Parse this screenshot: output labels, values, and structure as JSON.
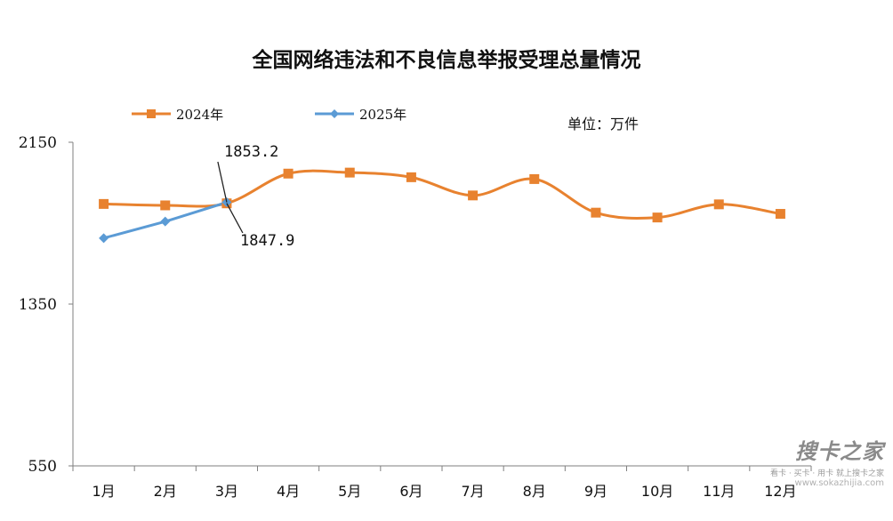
{
  "chart_data": {
    "type": "line",
    "title": "全国网络违法和不良信息举报受理总量情况",
    "unit_note": "单位：万件",
    "categories": [
      "1月",
      "2月",
      "3月",
      "4月",
      "5月",
      "6月",
      "7月",
      "8月",
      "9月",
      "10月",
      "11月",
      "12月"
    ],
    "ylim": [
      550,
      2150
    ],
    "yticks": [
      550,
      1350,
      2150
    ],
    "legend_position": "top-left",
    "series": [
      {
        "name": "2024年",
        "color": "#E8822F",
        "marker": "square",
        "smooth": true,
        "values": [
          1845,
          1838,
          1847.9,
          1995,
          2000,
          1977,
          1887,
          1968,
          1802,
          1778,
          1843,
          1796
        ]
      },
      {
        "name": "2025年",
        "color": "#5B9BD5",
        "marker": "diamond",
        "smooth": false,
        "values": [
          1676,
          1758,
          1853.2,
          null,
          null,
          null,
          null,
          null,
          null,
          null,
          null,
          null
        ]
      }
    ],
    "annotations": [
      {
        "text": "1853.2",
        "series": "2025年",
        "index": 2
      },
      {
        "text": "1847.9",
        "series": "2024年",
        "index": 2
      }
    ]
  },
  "watermark": {
    "main": "搜卡之家",
    "sub": "看卡 · 买卡 · 用卡 就上搜卡之家",
    "url": "www.sokazhijia.com"
  }
}
